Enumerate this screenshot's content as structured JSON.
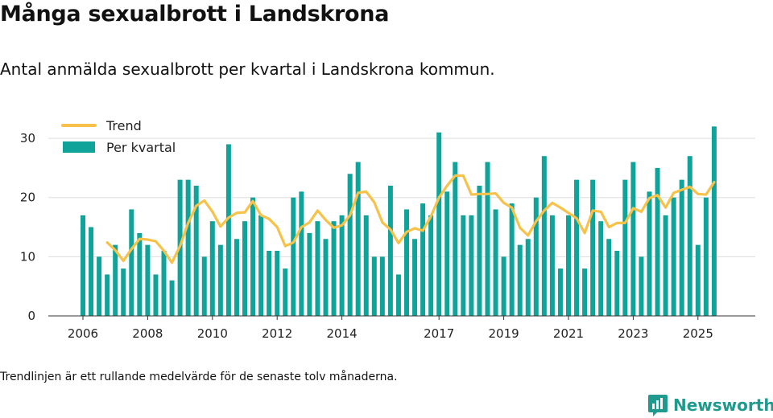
{
  "header": {
    "title": "Många sexualbrott i Landskrona",
    "subtitle": "Antal anmälda sexualbrott per kvartal i Landskrona kommun."
  },
  "footnote": "Trendlinjen är ett rullande medelvärde för de senaste tolv månaderna.",
  "brand": {
    "name": "Newsworthy",
    "color": "#1f9a8e",
    "icon": "bar-chart-logo-icon"
  },
  "chart_data": {
    "type": "bar",
    "title": "Antal anmälda sexualbrott per kvartal",
    "xlabel": "",
    "ylabel": "",
    "ylim": [
      0,
      33
    ],
    "yticks": [
      0,
      10,
      20,
      30
    ],
    "grid": true,
    "legend_position": "top-left",
    "colors": {
      "bars": "#0fa39a",
      "trend": "#f7c24a",
      "grid": "#dddddd"
    },
    "x_tick_labels": [
      {
        "label": "2006",
        "index": 0
      },
      {
        "label": "2008",
        "index": 8
      },
      {
        "label": "2010",
        "index": 16
      },
      {
        "label": "2012",
        "index": 24
      },
      {
        "label": "2014",
        "index": 32
      },
      {
        "label": "2017",
        "index": 44
      },
      {
        "label": "2019",
        "index": 52
      },
      {
        "label": "2021",
        "index": 60
      },
      {
        "label": "2023",
        "index": 68
      },
      {
        "label": "2025",
        "index": 76
      }
    ],
    "series": [
      {
        "name": "Per kvartal",
        "type": "bar",
        "values": [
          17,
          15,
          10,
          7,
          12,
          8,
          18,
          14,
          12,
          7,
          11,
          6,
          23,
          23,
          22,
          10,
          16,
          12,
          29,
          13,
          16,
          20,
          17,
          11,
          11,
          8,
          20,
          21,
          14,
          16,
          13,
          16,
          17,
          24,
          26,
          17,
          10,
          10,
          22,
          7,
          18,
          13,
          19,
          17,
          31,
          21,
          26,
          17,
          17,
          22,
          26,
          18,
          10,
          19,
          12,
          13,
          20,
          27,
          17,
          8,
          17,
          23,
          8,
          23,
          16,
          13,
          11,
          23,
          26,
          10,
          21,
          25,
          17,
          20,
          23,
          27,
          12,
          20,
          32
        ]
      },
      {
        "name": "Trend",
        "type": "line",
        "start_index": 3,
        "values": [
          12.4,
          11.1,
          9.3,
          11.3,
          13,
          12.9,
          12.6,
          11,
          9,
          11.8,
          15.7,
          18.6,
          19.5,
          17.6,
          15.1,
          16.6,
          17.4,
          17.5,
          19.4,
          17,
          16.4,
          15,
          11.8,
          12.4,
          15,
          15.8,
          17.8,
          16.2,
          14.9,
          15.3,
          17,
          20.8,
          21,
          19.2,
          15.8,
          14.6,
          12.3,
          14.2,
          14.8,
          14.4,
          16.8,
          20,
          22,
          23.7,
          23.7,
          20.5,
          20.6,
          20.6,
          20.7,
          19.1,
          18.3,
          14.9,
          13.6,
          16,
          17.8,
          19.1,
          18.3,
          17.4,
          16.5,
          14,
          17.8,
          17.6,
          15,
          15.7,
          15.7,
          18.2,
          17.6,
          19.9,
          20.4,
          18.3,
          20.8,
          21.3,
          21.8,
          20.6,
          20.5,
          22.6
        ]
      }
    ]
  }
}
